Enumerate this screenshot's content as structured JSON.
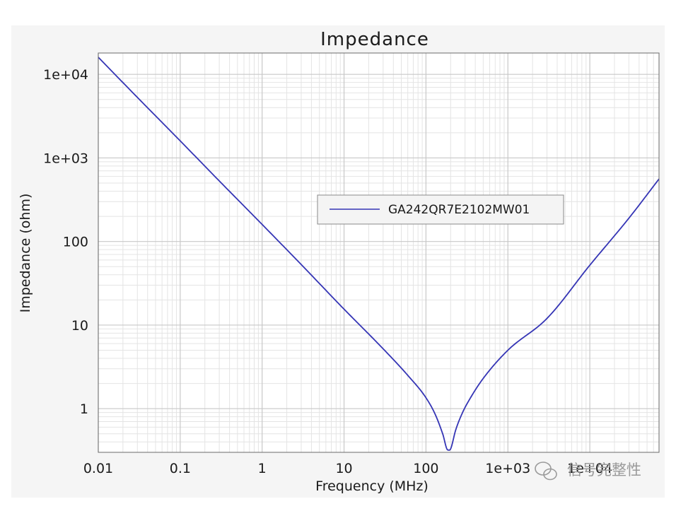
{
  "chart_data": {
    "type": "line",
    "title": "Impedance",
    "xlabel": "Frequency (MHz)",
    "ylabel": "Impedance (ohm)",
    "x_scale": "log",
    "y_scale": "log",
    "xlim": [
      0.01,
      70000
    ],
    "ylim": [
      0.3,
      18000
    ],
    "x_ticks": [
      {
        "value": 0.01,
        "label": "0.01"
      },
      {
        "value": 0.1,
        "label": "0.1"
      },
      {
        "value": 1,
        "label": "1"
      },
      {
        "value": 10,
        "label": "10"
      },
      {
        "value": 100,
        "label": "100"
      },
      {
        "value": 1000,
        "label": "1e+03"
      },
      {
        "value": 10000,
        "label": "1e+04"
      }
    ],
    "y_ticks": [
      {
        "value": 1,
        "label": "1"
      },
      {
        "value": 10,
        "label": "10"
      },
      {
        "value": 100,
        "label": "100"
      },
      {
        "value": 1000,
        "label": "1e+03"
      },
      {
        "value": 10000,
        "label": "1e+04"
      }
    ],
    "grid": true,
    "legend_position": "center-right",
    "series": [
      {
        "name": "GA242QR7E2102MW01",
        "color": "#3535b5",
        "x": [
          0.01,
          0.03,
          0.1,
          0.3,
          1,
          3,
          10,
          30,
          60,
          100,
          130,
          160,
          185,
          200,
          230,
          280,
          350,
          500,
          1000,
          3000,
          10000,
          30000,
          70000
        ],
        "y": [
          16000,
          5300,
          1600,
          530,
          160,
          53,
          15.5,
          5.2,
          2.5,
          1.35,
          0.85,
          0.5,
          0.32,
          0.33,
          0.55,
          0.9,
          1.35,
          2.3,
          5,
          12,
          52,
          190,
          560
        ]
      }
    ]
  },
  "watermark": {
    "text": "信号完整性",
    "icon": "wechat-icon"
  }
}
